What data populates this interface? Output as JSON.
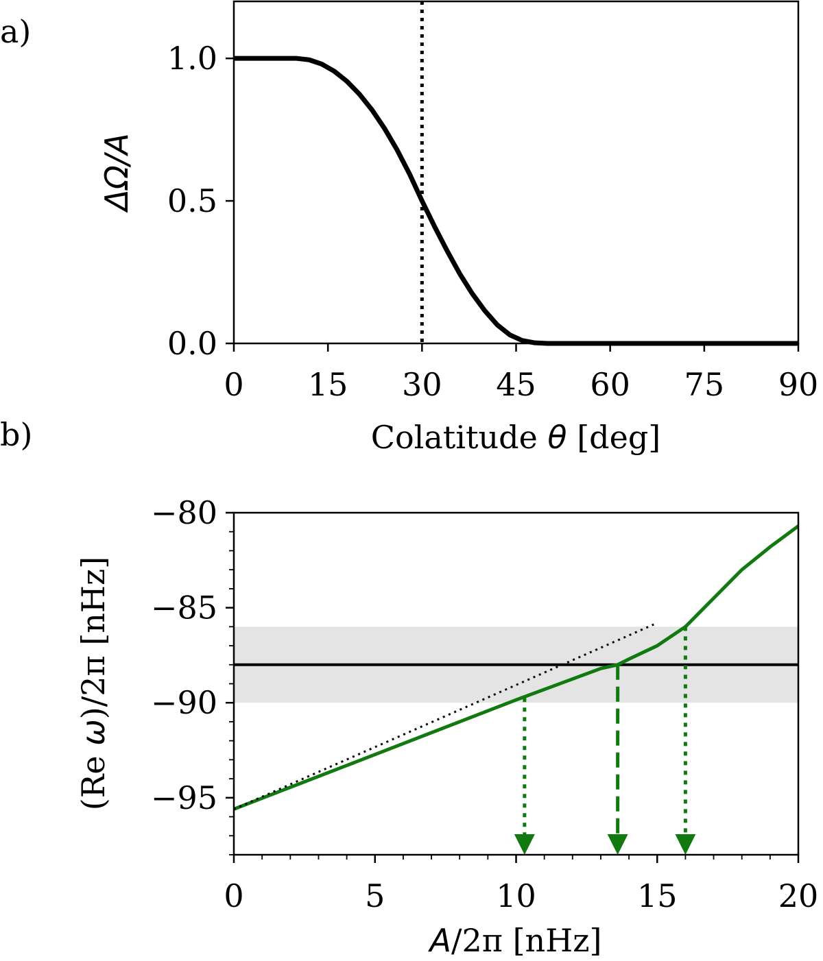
{
  "chart_data": [
    {
      "type": "line",
      "panel_label": "a)",
      "xlabel_text": "Colatitude ",
      "xlabel_symbol": "θ",
      "xlabel_unit": " [deg]",
      "ylabel": "ΔΩ/A",
      "xlim": [
        0,
        90
      ],
      "ylim": [
        0,
        1.2
      ],
      "xticks": [
        0,
        15,
        30,
        45,
        60,
        75,
        90
      ],
      "xtick_labels": [
        "0",
        "15",
        "30",
        "45",
        "60",
        "75",
        "90"
      ],
      "yticks": [
        0,
        0.5,
        1.0
      ],
      "ytick_labels": [
        "0.0",
        "0.5",
        "1.0"
      ],
      "grid": false,
      "series": [
        {
          "color": "#000000",
          "style": "solid",
          "x": [
            0,
            5,
            10,
            12,
            14,
            16,
            18,
            20,
            22,
            24,
            26,
            28,
            30,
            32,
            34,
            36,
            38,
            40,
            42,
            44,
            46,
            48,
            50,
            55,
            60,
            70,
            80,
            90
          ],
          "y": [
            1.0,
            1.0,
            1.0,
            0.995,
            0.98,
            0.955,
            0.92,
            0.875,
            0.82,
            0.755,
            0.68,
            0.595,
            0.5,
            0.41,
            0.325,
            0.245,
            0.175,
            0.115,
            0.065,
            0.03,
            0.01,
            0.002,
            0.0,
            0.0,
            0.0,
            0.0,
            0.0,
            0.0
          ]
        }
      ],
      "vlines": [
        {
          "x": 30,
          "style": "dotted",
          "color": "#000000"
        }
      ]
    },
    {
      "type": "line",
      "panel_label": "b)",
      "xlabel_symbol": "A",
      "xlabel_text": "/2π",
      "xlabel_unit": "  [nHz]",
      "ylabel_text_1": "(Re ",
      "ylabel_symbol": "ω",
      "ylabel_text_2": ")/2π",
      "ylabel_unit": "  [nHz]",
      "xlim": [
        0,
        20
      ],
      "ylim": [
        -98,
        -80
      ],
      "xticks": [
        0,
        5,
        10,
        15,
        20
      ],
      "xtick_labels": [
        "0",
        "5",
        "10",
        "15",
        "20"
      ],
      "yticks": [
        -95,
        -90,
        -85,
        -80
      ],
      "ytick_labels": [
        "−95",
        "−90",
        "−85",
        "−80"
      ],
      "grid": false,
      "colors": {
        "green": "#107a10",
        "band": "#e4e4e4"
      },
      "band": {
        "y0": -90,
        "y1": -86
      },
      "hline": {
        "y": -88,
        "color": "#000000"
      },
      "series": [
        {
          "color": "#107a10",
          "style": "solid",
          "x": [
            0,
            2,
            4,
            6,
            8,
            10,
            11,
            12,
            13,
            13.6,
            14,
            15,
            16,
            17,
            18,
            19,
            20
          ],
          "y": [
            -95.6,
            -94.45,
            -93.3,
            -92.15,
            -91.0,
            -89.85,
            -89.3,
            -88.75,
            -88.2,
            -88.0,
            -87.7,
            -87.0,
            -86.0,
            -84.5,
            -83.0,
            -81.8,
            -80.7
          ]
        },
        {
          "color": "#000000",
          "style": "dotted",
          "x": [
            0,
            15
          ],
          "y": [
            -95.6,
            -85.8
          ]
        }
      ],
      "arrows": [
        {
          "x": 10.3,
          "y_start": -89.75,
          "style": "dotted"
        },
        {
          "x": 13.6,
          "y_start": -88.0,
          "style": "dashed"
        },
        {
          "x": 16.0,
          "y_start": -86.0,
          "style": "dotted"
        }
      ]
    }
  ]
}
